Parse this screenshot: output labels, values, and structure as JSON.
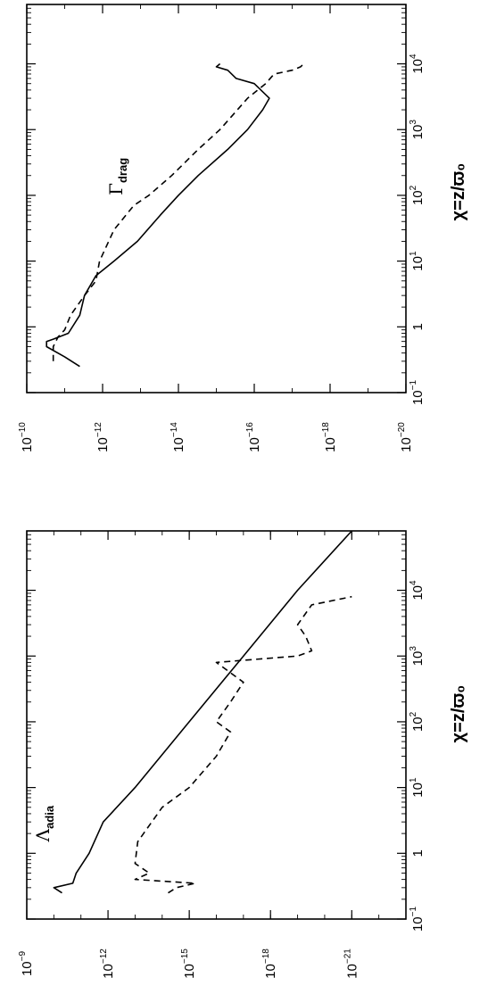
{
  "chart_data": [
    {
      "type": "line",
      "panel": "top",
      "xlabel": "χ=z/ϖ₀",
      "x_scale": "log",
      "y_scale": "log",
      "xlim": [
        0.1,
        80000
      ],
      "ylim": [
        1e-20,
        1e-10
      ],
      "x_ticks": [
        {
          "value": 0.1,
          "base": "10",
          "exp": "−1"
        },
        {
          "value": 1,
          "base": "1",
          "exp": ""
        },
        {
          "value": 10,
          "base": "10",
          "exp": "1"
        },
        {
          "value": 100,
          "base": "10",
          "exp": "2"
        },
        {
          "value": 1000,
          "base": "10",
          "exp": "3"
        },
        {
          "value": 10000,
          "base": "10",
          "exp": "4"
        }
      ],
      "y_ticks": [
        {
          "value": 1e-10,
          "base": "10",
          "exp": "−10"
        },
        {
          "value": 1e-12,
          "base": "10",
          "exp": "−12"
        },
        {
          "value": 1e-14,
          "base": "10",
          "exp": "−14"
        },
        {
          "value": 1e-16,
          "base": "10",
          "exp": "−16"
        },
        {
          "value": 1e-18,
          "base": "10",
          "exp": "−18"
        },
        {
          "value": 1e-20,
          "base": "10",
          "exp": "−20"
        }
      ],
      "annotation": {
        "symbol": "Γ",
        "subscript": "drag",
        "x": 100,
        "y": 3e-13
      },
      "series": [
        {
          "style": "solid",
          "points": [
            [
              0.25,
              4e-12
            ],
            [
              0.35,
              1e-11
            ],
            [
              0.5,
              3e-11
            ],
            [
              0.6,
              3e-11
            ],
            [
              0.65,
              2e-11
            ],
            [
              0.8,
              8e-12
            ],
            [
              1.5,
              4e-12
            ],
            [
              3,
              3e-12
            ],
            [
              6,
              1.5e-12
            ],
            [
              10,
              5e-13
            ],
            [
              20,
              1.2e-13
            ],
            [
              50,
              3e-14
            ],
            [
              100,
              1e-14
            ],
            [
              200,
              3e-15
            ],
            [
              500,
              5e-16
            ],
            [
              1000,
              1.5e-16
            ],
            [
              2000,
              6e-17
            ],
            [
              3000,
              4e-17
            ],
            [
              5000,
              1e-16
            ],
            [
              6000,
              3e-16
            ],
            [
              8000,
              5e-16
            ],
            [
              9000,
              1e-15
            ],
            [
              10000,
              8e-16
            ]
          ]
        },
        {
          "style": "dashed",
          "points": [
            [
              0.3,
              2e-11
            ],
            [
              0.5,
              2e-11
            ],
            [
              0.7,
              1.5e-11
            ],
            [
              0.9,
              1e-11
            ],
            [
              1.5,
              7e-12
            ],
            [
              3,
              3e-12
            ],
            [
              5,
              1.5e-12
            ],
            [
              10,
              1.2e-12
            ],
            [
              30,
              5e-13
            ],
            [
              70,
              1.5e-13
            ],
            [
              100,
              6e-14
            ],
            [
              200,
              1.5e-14
            ],
            [
              500,
              3e-15
            ],
            [
              1000,
              8e-16
            ],
            [
              3000,
              1.5e-16
            ],
            [
              5000,
              5e-17
            ],
            [
              7000,
              3e-17
            ],
            [
              8000,
              1e-17
            ],
            [
              9000,
              6e-18
            ],
            [
              10000,
              5e-18
            ]
          ]
        }
      ]
    },
    {
      "type": "line",
      "panel": "bottom",
      "xlabel": "χ=z/ϖ₀",
      "x_scale": "log",
      "y_scale": "log",
      "xlim": [
        0.1,
        80000
      ],
      "ylim": [
        1e-23,
        1e-09
      ],
      "x_ticks": [
        {
          "value": 0.1,
          "base": "10",
          "exp": "−1"
        },
        {
          "value": 1,
          "base": "1",
          "exp": ""
        },
        {
          "value": 10,
          "base": "10",
          "exp": "1"
        },
        {
          "value": 100,
          "base": "10",
          "exp": "2"
        },
        {
          "value": 1000,
          "base": "10",
          "exp": "3"
        },
        {
          "value": 10000,
          "base": "10",
          "exp": "4"
        }
      ],
      "y_ticks": [
        {
          "value": 1e-09,
          "base": "10",
          "exp": "−9"
        },
        {
          "value": 1e-12,
          "base": "10",
          "exp": "−12"
        },
        {
          "value": 1e-15,
          "base": "10",
          "exp": "−15"
        },
        {
          "value": 1e-18,
          "base": "10",
          "exp": "−18"
        },
        {
          "value": 1e-21,
          "base": "10",
          "exp": "−21"
        }
      ],
      "annotation": {
        "symbol": "Λ",
        "subscript": "adia",
        "x": 1.5,
        "y": 1.5e-10
      },
      "series": [
        {
          "style": "solid",
          "points": [
            [
              0.25,
              5e-11
            ],
            [
              0.3,
              1e-10
            ],
            [
              0.35,
              2e-11
            ],
            [
              0.5,
              1.5e-11
            ],
            [
              1,
              5e-12
            ],
            [
              3,
              1.5e-12
            ],
            [
              10,
              1e-13
            ],
            [
              100,
              1e-15
            ],
            [
              1000,
              1e-17
            ],
            [
              10000,
              1e-19
            ],
            [
              80000,
              1e-21
            ]
          ]
        },
        {
          "style": "dashed",
          "points": [
            [
              0.25,
              6e-15
            ],
            [
              0.3,
              3e-15
            ],
            [
              0.35,
              6e-16
            ],
            [
              0.4,
              1e-13
            ],
            [
              0.5,
              3e-14
            ],
            [
              0.7,
              1e-13
            ],
            [
              1.5,
              8e-14
            ],
            [
              5,
              1e-14
            ],
            [
              10,
              1e-15
            ],
            [
              30,
              1e-16
            ],
            [
              70,
              3e-17
            ],
            [
              100,
              1e-16
            ],
            [
              200,
              3e-17
            ],
            [
              400,
              1e-17
            ],
            [
              800,
              1e-16
            ],
            [
              1000,
              1e-19
            ],
            [
              1200,
              3e-20
            ],
            [
              2000,
              5e-20
            ],
            [
              3000,
              1e-19
            ],
            [
              6000,
              3e-20
            ],
            [
              8000,
              1e-21
            ]
          ]
        }
      ]
    }
  ]
}
